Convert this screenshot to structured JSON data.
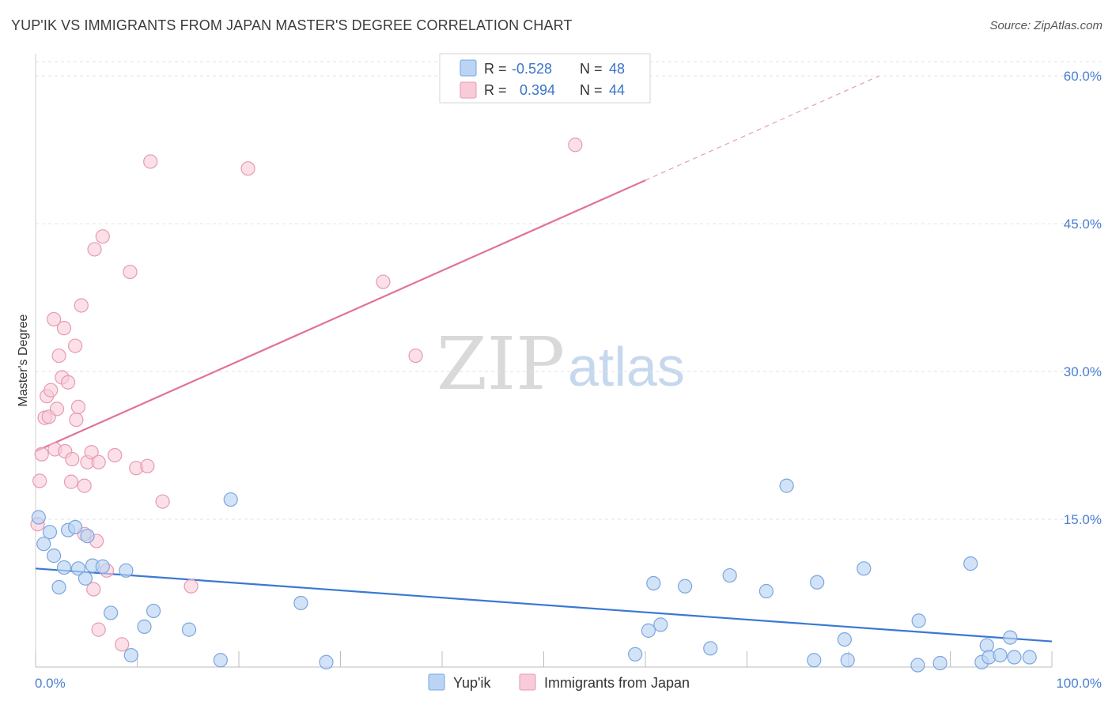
{
  "header": {
    "title": "YUP'IK VS IMMIGRANTS FROM JAPAN MASTER'S DEGREE CORRELATION CHART",
    "source": "Source: ZipAtlas.com"
  },
  "watermark": {
    "zip": "ZIP",
    "atlas": "atlas"
  },
  "legend_top": {
    "rows": [
      {
        "r_label": "R =",
        "r_value": "-0.528",
        "n_label": "N =",
        "n_value": "48"
      },
      {
        "r_label": "R =",
        "r_value": "0.394",
        "n_label": "N =",
        "n_value": "44"
      }
    ]
  },
  "legend_bottom": {
    "items": [
      {
        "label": "Yup'ik"
      },
      {
        "label": "Immigrants from Japan"
      }
    ]
  },
  "colors": {
    "blue_fill": "#bcd4f3",
    "blue_stroke": "#7aa6df",
    "blue_line": "#3a78d4",
    "pink_fill": "#f8cbd8",
    "pink_stroke": "#e79ab2",
    "pink_line": "#e0729a",
    "grid": "#e3e3e3",
    "tick_text": "#4a7fd0"
  },
  "chart_data": {
    "type": "scatter",
    "title": "YUP'IK VS IMMIGRANTS FROM JAPAN MASTER'S DEGREE CORRELATION CHART",
    "xlabel": "",
    "ylabel": "Master's Degree",
    "xlim": [
      0,
      100
    ],
    "ylim": [
      0,
      63
    ],
    "x_tick_labels": [
      {
        "value": 0,
        "label": "0.0%"
      },
      {
        "value": 100,
        "label": "100.0%"
      }
    ],
    "y_ticks": [
      {
        "value": 15,
        "label": "15.0%"
      },
      {
        "value": 30,
        "label": "30.0%"
      },
      {
        "value": 45,
        "label": "45.0%"
      },
      {
        "value": 60,
        "label": "60.0%"
      }
    ],
    "grid": true,
    "series": [
      {
        "name": "Yup'ik",
        "color": "#7aa6df",
        "r": -0.528,
        "n": 48,
        "trend": {
          "x0": 0,
          "y0": 10.0,
          "x1": 100,
          "y1": 2.6
        },
        "points": [
          [
            0.3,
            15.2
          ],
          [
            1.4,
            13.7
          ],
          [
            0.8,
            12.5
          ],
          [
            1.8,
            11.3
          ],
          [
            2.3,
            8.1
          ],
          [
            2.8,
            10.1
          ],
          [
            3.2,
            13.9
          ],
          [
            3.9,
            14.2
          ],
          [
            4.2,
            10.0
          ],
          [
            4.9,
            9.0
          ],
          [
            5.1,
            13.3
          ],
          [
            5.6,
            10.3
          ],
          [
            6.6,
            10.2
          ],
          [
            7.4,
            5.5
          ],
          [
            8.9,
            9.8
          ],
          [
            9.4,
            1.2
          ],
          [
            10.7,
            4.1
          ],
          [
            11.6,
            5.7
          ],
          [
            15.1,
            3.8
          ],
          [
            18.2,
            0.7
          ],
          [
            19.2,
            17.0
          ],
          [
            28.6,
            0.5
          ],
          [
            26.1,
            6.5
          ],
          [
            59.0,
            1.3
          ],
          [
            60.8,
            8.5
          ],
          [
            60.3,
            3.7
          ],
          [
            61.5,
            4.3
          ],
          [
            63.9,
            8.2
          ],
          [
            66.4,
            1.9
          ],
          [
            68.3,
            9.3
          ],
          [
            71.9,
            7.7
          ],
          [
            73.9,
            18.4
          ],
          [
            76.6,
            0.7
          ],
          [
            76.9,
            8.6
          ],
          [
            79.6,
            2.8
          ],
          [
            79.9,
            0.7
          ],
          [
            81.5,
            10.0
          ],
          [
            86.8,
            0.2
          ],
          [
            86.9,
            4.7
          ],
          [
            89.0,
            0.4
          ],
          [
            92.0,
            10.5
          ],
          [
            93.1,
            0.5
          ],
          [
            93.6,
            2.2
          ],
          [
            93.8,
            1.0
          ],
          [
            94.9,
            1.2
          ],
          [
            95.9,
            3.0
          ],
          [
            96.3,
            1.0
          ],
          [
            97.8,
            1.0
          ]
        ]
      },
      {
        "name": "Immigrants from Japan",
        "color": "#e79ab2",
        "r": 0.394,
        "n": 44,
        "trend": {
          "x0": 0,
          "y0": 21.9,
          "x1": 60,
          "y1": 49.4,
          "dash_x0": 60,
          "dash_y0": 49.4,
          "dash_x1": 83,
          "dash_y1": 60.0
        },
        "points": [
          [
            0.2,
            14.5
          ],
          [
            0.4,
            18.9
          ],
          [
            0.6,
            21.6
          ],
          [
            0.9,
            25.3
          ],
          [
            1.1,
            27.5
          ],
          [
            1.3,
            25.4
          ],
          [
            1.5,
            28.1
          ],
          [
            1.8,
            35.3
          ],
          [
            1.9,
            22.1
          ],
          [
            2.1,
            26.2
          ],
          [
            2.3,
            31.6
          ],
          [
            2.6,
            29.4
          ],
          [
            2.8,
            34.4
          ],
          [
            2.9,
            21.9
          ],
          [
            3.2,
            28.9
          ],
          [
            3.5,
            18.8
          ],
          [
            3.6,
            21.1
          ],
          [
            3.9,
            32.6
          ],
          [
            4.0,
            25.1
          ],
          [
            4.2,
            26.4
          ],
          [
            4.5,
            36.7
          ],
          [
            4.8,
            13.5
          ],
          [
            4.8,
            18.4
          ],
          [
            5.1,
            20.8
          ],
          [
            5.5,
            21.8
          ],
          [
            5.7,
            7.9
          ],
          [
            5.8,
            42.4
          ],
          [
            6.0,
            12.8
          ],
          [
            6.2,
            20.8
          ],
          [
            6.2,
            3.8
          ],
          [
            6.6,
            43.7
          ],
          [
            7.0,
            9.8
          ],
          [
            7.8,
            21.5
          ],
          [
            8.5,
            2.3
          ],
          [
            9.3,
            40.1
          ],
          [
            9.9,
            20.2
          ],
          [
            11.0,
            20.4
          ],
          [
            11.3,
            51.3
          ],
          [
            12.5,
            16.8
          ],
          [
            15.3,
            8.2
          ],
          [
            20.9,
            50.6
          ],
          [
            34.2,
            39.1
          ],
          [
            37.4,
            31.6
          ],
          [
            53.1,
            53.0
          ]
        ]
      }
    ]
  }
}
